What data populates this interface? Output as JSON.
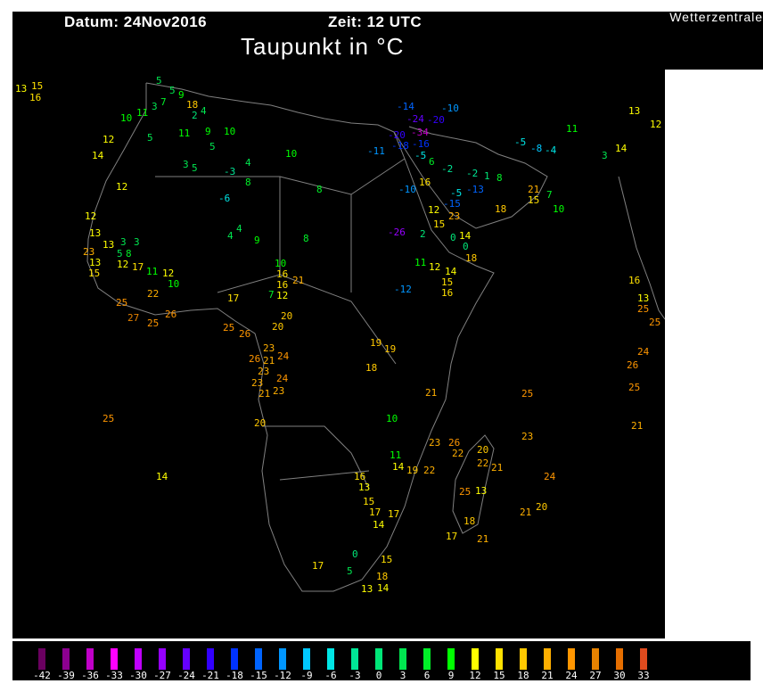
{
  "header": {
    "date_label": "Datum: 24Nov2016",
    "time_label": "Zeit: 12  UTC",
    "brand": "Wetterzentrale",
    "title": "Taupunkt in °C"
  },
  "map": {
    "parameter": "dew point",
    "unit": "°C",
    "region": "Africa / Middle East",
    "border_color": "#808080",
    "station_values": [
      13,
      15,
      16,
      5,
      5,
      7,
      9,
      12,
      10,
      11,
      12,
      3,
      2,
      4,
      5,
      13,
      15,
      14,
      18,
      9,
      10,
      5,
      11,
      8,
      10,
      8,
      -3,
      4,
      3,
      5,
      -6,
      4,
      4,
      9,
      8,
      12,
      13,
      13,
      3,
      3,
      5,
      8,
      12,
      17,
      11,
      12,
      10,
      16,
      23,
      22,
      25,
      27,
      25,
      26,
      17,
      25,
      26,
      20,
      21,
      16,
      12,
      7,
      10,
      20,
      23,
      21,
      24,
      26,
      23,
      23,
      21,
      23,
      24,
      20,
      14,
      25,
      19,
      19,
      18,
      10,
      11,
      14,
      19,
      22,
      23,
      26,
      22,
      20,
      22,
      21,
      25,
      13,
      18,
      21,
      17,
      23,
      21,
      20,
      24,
      25,
      21,
      16,
      13,
      15,
      17,
      14,
      17,
      15,
      0,
      5,
      13,
      14,
      18,
      17,
      -5,
      -2,
      1,
      8,
      16,
      12,
      15,
      23,
      2,
      0,
      14,
      18,
      18,
      15,
      21,
      7,
      10,
      11,
      12,
      14,
      15,
      16,
      0,
      -12,
      -26,
      -20,
      -11,
      -5,
      -10,
      -15,
      -13,
      -8,
      3,
      14,
      13,
      12,
      16,
      13,
      25,
      25,
      26,
      25,
      21,
      24,
      -24,
      -34,
      -20,
      -18,
      -16,
      -14,
      -10,
      -5,
      -4,
      -2,
      6,
      11
    ],
    "legend": {
      "ticks": [
        -42,
        -39,
        -36,
        -33,
        -30,
        -27,
        -24,
        -21,
        -18,
        -15,
        -12,
        -9,
        -6,
        -3,
        0,
        3,
        6,
        9,
        12,
        15,
        18,
        21,
        24,
        27,
        30,
        33
      ],
      "tick_labels": [
        "-42",
        "-39",
        "-36",
        "-33",
        "-30",
        "-27",
        "-24",
        "-21",
        "-18",
        "-15",
        "-12",
        "-9",
        "-6",
        "-3",
        "0",
        "3",
        "6",
        "9",
        "12",
        "15",
        "18",
        "21",
        "24",
        "27",
        "30",
        "33"
      ],
      "colors": [
        "#6a0060",
        "#8c0090",
        "#c000c8",
        "#ff00ff",
        "#c000ff",
        "#9600ff",
        "#6400ff",
        "#3200ff",
        "#0032ff",
        "#0064ff",
        "#0096ff",
        "#00c8ff",
        "#00e6e6",
        "#00e696",
        "#00e678",
        "#00e650",
        "#00f028",
        "#00ff00",
        "#ffff00",
        "#ffe100",
        "#ffc800",
        "#ffaf00",
        "#ff9600",
        "#e68200",
        "#e66e00",
        "#e04b1e"
      ]
    }
  }
}
